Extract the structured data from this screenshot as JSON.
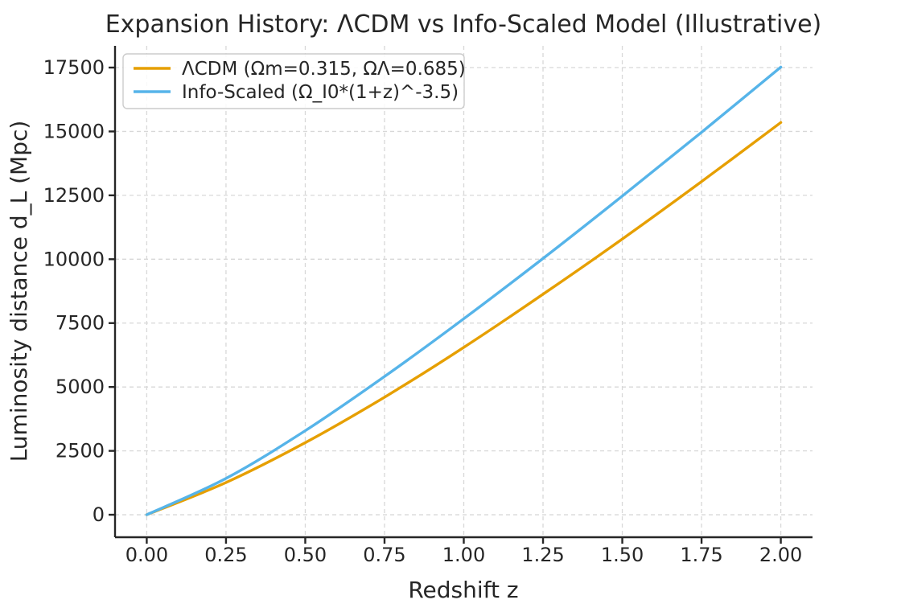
{
  "chart_data": {
    "type": "line",
    "title": "Expansion History: ΛCDM vs Info-Scaled Model (Illustrative)",
    "xlabel": "Redshift z",
    "ylabel": "Luminosity distance d_L (Mpc)",
    "x": [
      0.0,
      0.25,
      0.5,
      0.75,
      1.0,
      1.25,
      1.5,
      1.75,
      2.0
    ],
    "series": [
      {
        "id": "lcdm",
        "name": "ΛCDM (Ωm=0.315, ΩΛ=0.685)",
        "color": "#E69F00",
        "values": [
          0,
          1260,
          2820,
          4600,
          6550,
          8630,
          10790,
          13040,
          15350
        ]
      },
      {
        "id": "info-scaled",
        "name": "Info-Scaled (Ω_I0*(1+z)^-3.5)",
        "color": "#56B4E9",
        "values": [
          0,
          1420,
          3290,
          5410,
          7670,
          10030,
          12470,
          14970,
          17520
        ]
      }
    ],
    "x_ticks": [
      {
        "v": 0.0,
        "label": "0.00"
      },
      {
        "v": 0.25,
        "label": "0.25"
      },
      {
        "v": 0.5,
        "label": "0.50"
      },
      {
        "v": 0.75,
        "label": "0.75"
      },
      {
        "v": 1.0,
        "label": "1.00"
      },
      {
        "v": 1.25,
        "label": "1.25"
      },
      {
        "v": 1.5,
        "label": "1.50"
      },
      {
        "v": 1.75,
        "label": "1.75"
      },
      {
        "v": 2.0,
        "label": "2.00"
      }
    ],
    "y_ticks": [
      {
        "v": 0,
        "label": "0"
      },
      {
        "v": 2500,
        "label": "2500"
      },
      {
        "v": 5000,
        "label": "5000"
      },
      {
        "v": 7500,
        "label": "7500"
      },
      {
        "v": 10000,
        "label": "10000"
      },
      {
        "v": 12500,
        "label": "12500"
      },
      {
        "v": 15000,
        "label": "15000"
      },
      {
        "v": 17500,
        "label": "17500"
      }
    ],
    "xlim": [
      -0.1,
      2.1
    ],
    "ylim": [
      -880,
      18350
    ],
    "grid": true,
    "grid_style": "dashed",
    "legend_position": "upper left"
  },
  "colors": {
    "lcdm": "#E69F00",
    "info_scaled": "#56B4E9",
    "grid": "#d8d8d8",
    "text": "#262626",
    "spine": "#262626",
    "legend_border": "#cccccc"
  }
}
